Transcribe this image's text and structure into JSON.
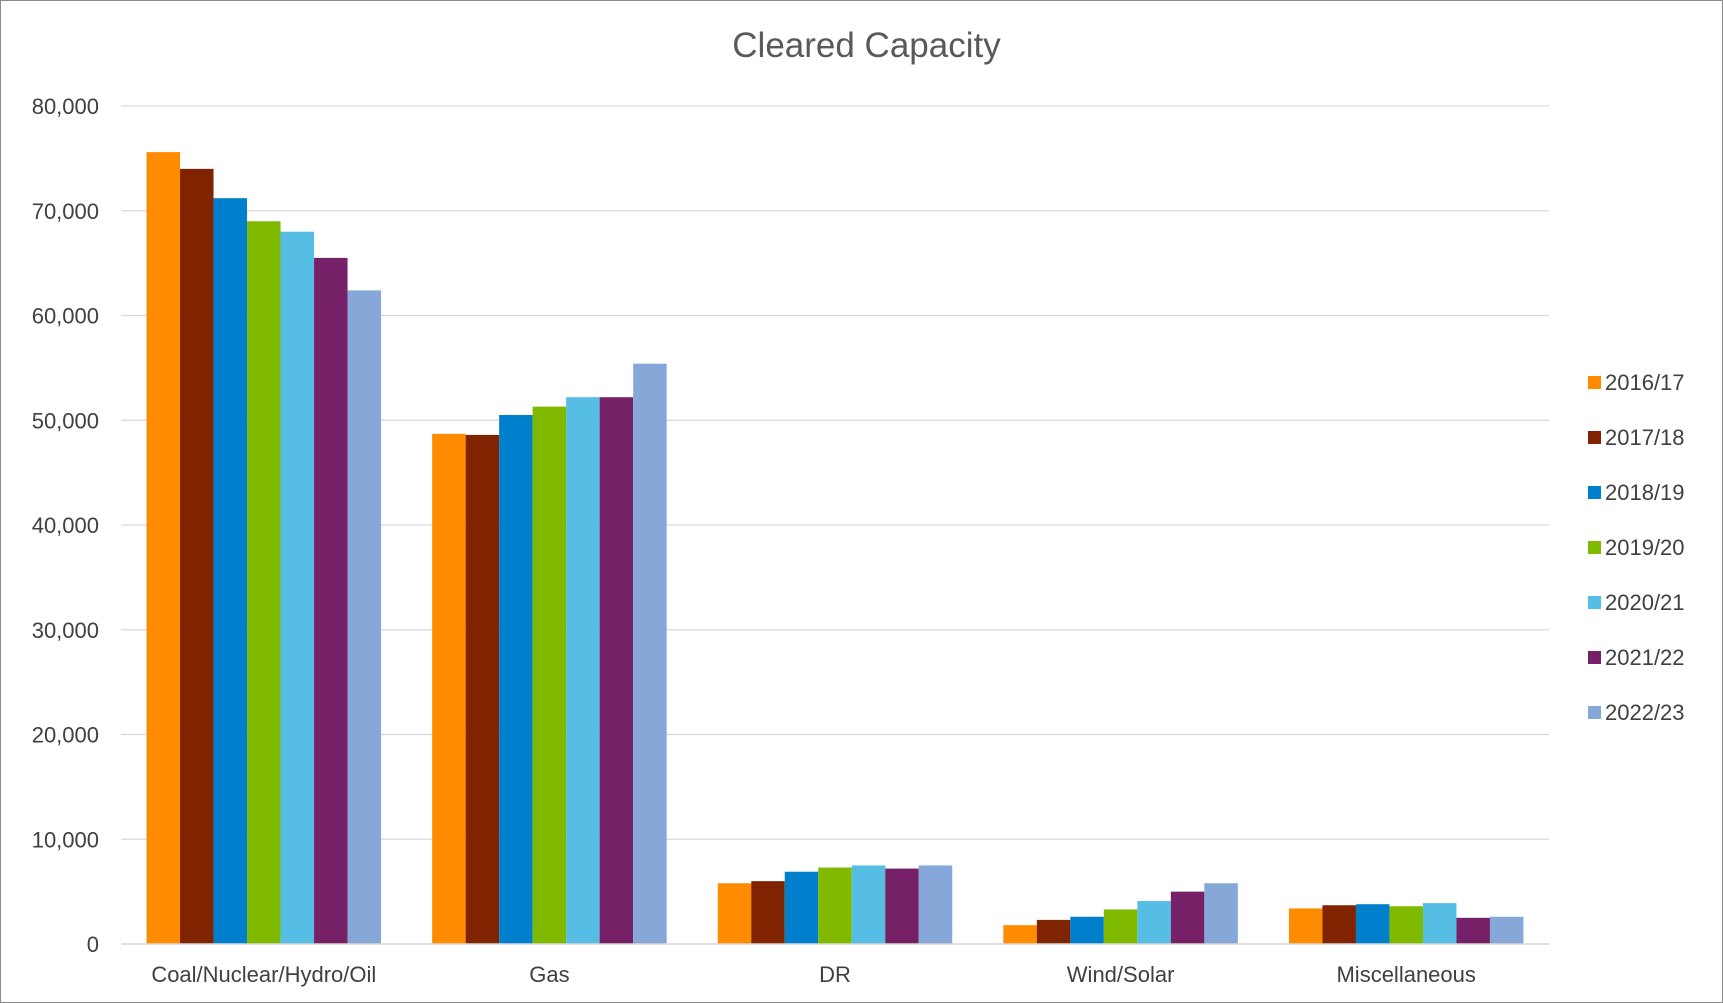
{
  "chart_data": {
    "type": "bar",
    "title": "Cleared Capacity",
    "xlabel": "",
    "ylabel": "",
    "ylim": [
      0,
      80000
    ],
    "yticks": [
      "0",
      "10,000",
      "20,000",
      "30,000",
      "40,000",
      "50,000",
      "60,000",
      "70,000",
      "80,000"
    ],
    "ytick_values": [
      0,
      10000,
      20000,
      30000,
      40000,
      50000,
      60000,
      70000,
      80000
    ],
    "grid": true,
    "legend_position": "right",
    "categories": [
      "Coal/Nuclear/Hydro/Oil",
      "Gas",
      "DR",
      "Wind/Solar",
      "Miscellaneous"
    ],
    "series": [
      {
        "name": "2016/17",
        "color": "#FF8C00",
        "values": [
          75600,
          48700,
          5800,
          1800,
          3400
        ]
      },
      {
        "name": "2017/18",
        "color": "#7F2300",
        "values": [
          74000,
          48600,
          6000,
          2300,
          3700
        ]
      },
      {
        "name": "2018/19",
        "color": "#0080CC",
        "values": [
          71200,
          50500,
          6900,
          2600,
          3800
        ]
      },
      {
        "name": "2019/20",
        "color": "#7FBA00",
        "values": [
          69000,
          51300,
          7300,
          3300,
          3600
        ]
      },
      {
        "name": "2020/21",
        "color": "#56BDE4",
        "values": [
          68000,
          52200,
          7500,
          4100,
          3900
        ]
      },
      {
        "name": "2021/22",
        "color": "#762067",
        "values": [
          65500,
          52200,
          7200,
          5000,
          2500
        ]
      },
      {
        "name": "2022/23",
        "color": "#85A8D8",
        "values": [
          62400,
          55400,
          7500,
          5800,
          2600
        ]
      }
    ]
  }
}
